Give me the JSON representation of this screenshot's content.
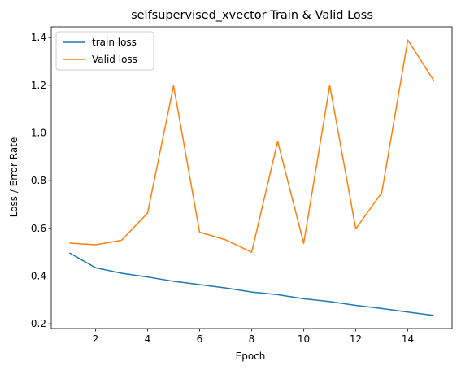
{
  "chart_data": {
    "type": "line",
    "title": "selfsupervised_xvector Train & Valid Loss",
    "xlabel": "Epoch",
    "ylabel": "Loss / Error Rate",
    "xlim": [
      0.3,
      15.7
    ],
    "ylim": [
      0.18,
      1.445
    ],
    "xticks": [
      2,
      4,
      6,
      8,
      10,
      12,
      14
    ],
    "yticks": [
      0.2,
      0.4,
      0.6,
      0.8,
      1.0,
      1.2,
      1.4
    ],
    "xtick_labels": [
      "2",
      "4",
      "6",
      "8",
      "10",
      "12",
      "14"
    ],
    "ytick_labels": [
      "0.2",
      "0.4",
      "0.6",
      "0.8",
      "1.0",
      "1.2",
      "1.4"
    ],
    "grid": false,
    "legend": "top-left",
    "x": [
      1,
      2,
      3,
      4,
      5,
      6,
      7,
      8,
      9,
      10,
      11,
      12,
      13,
      14,
      15
    ],
    "series": [
      {
        "name": "train loss",
        "color": "#1f77b4",
        "values": [
          0.497,
          0.435,
          0.412,
          0.396,
          0.378,
          0.364,
          0.35,
          0.333,
          0.322,
          0.305,
          0.293,
          0.277,
          0.264,
          0.249,
          0.235
        ]
      },
      {
        "name": "Valid loss",
        "color": "#ff7f0e",
        "values": [
          0.538,
          0.531,
          0.55,
          0.664,
          1.198,
          0.584,
          0.552,
          0.5,
          0.965,
          0.537,
          1.2,
          0.598,
          0.75,
          1.39,
          1.219
        ]
      }
    ]
  }
}
